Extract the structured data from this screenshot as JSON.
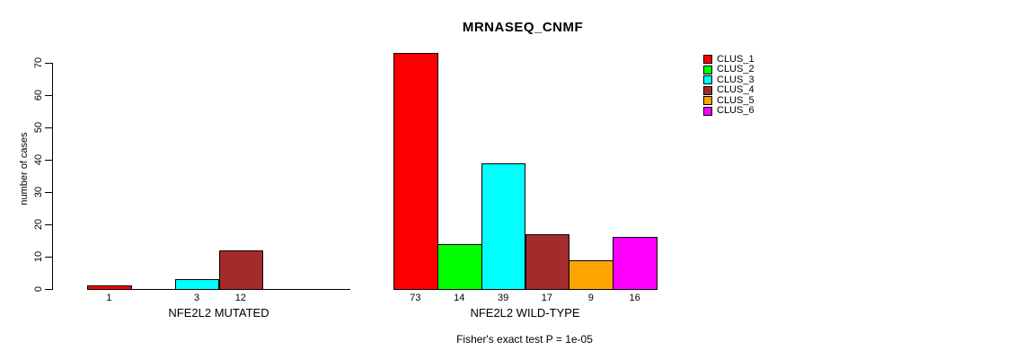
{
  "title": "MRNASEQ_CNMF",
  "chart_data": {
    "type": "bar",
    "title": "MRNASEQ_CNMF",
    "xlabel": "",
    "ylabel": "number of cases",
    "ylim": [
      0,
      70
    ],
    "yticks": [
      0,
      10,
      20,
      30,
      40,
      50,
      60,
      70
    ],
    "grid": false,
    "legend_position": "right-outside",
    "clusters": [
      "CLUS_1",
      "CLUS_2",
      "CLUS_3",
      "CLUS_4",
      "CLUS_5",
      "CLUS_6"
    ],
    "cluster_colors": [
      "#FF0000",
      "#00FF00",
      "#00FFFF",
      "#A52A2A",
      "#FFA500",
      "#FF00FF"
    ],
    "groups": [
      {
        "label": "NFE2L2 MUTATED",
        "values": [
          1,
          0,
          3,
          12,
          0,
          0
        ],
        "value_labels": [
          "1",
          "",
          "3",
          "12",
          "",
          ""
        ]
      },
      {
        "label": "NFE2L2 WILD-TYPE",
        "values": [
          73,
          14,
          39,
          17,
          9,
          16
        ],
        "value_labels": [
          "73",
          "14",
          "39",
          "17",
          "9",
          "16"
        ]
      }
    ],
    "annotation": "Fisher's exact test P = 1e-05"
  },
  "legend": {
    "items": [
      {
        "label": "CLUS_1",
        "color": "#FF0000"
      },
      {
        "label": "CLUS_2",
        "color": "#00FF00"
      },
      {
        "label": "CLUS_3",
        "color": "#00FFFF"
      },
      {
        "label": "CLUS_4",
        "color": "#A52A2A"
      },
      {
        "label": "CLUS_5",
        "color": "#FFA500"
      },
      {
        "label": "CLUS_6",
        "color": "#FF00FF"
      }
    ]
  }
}
